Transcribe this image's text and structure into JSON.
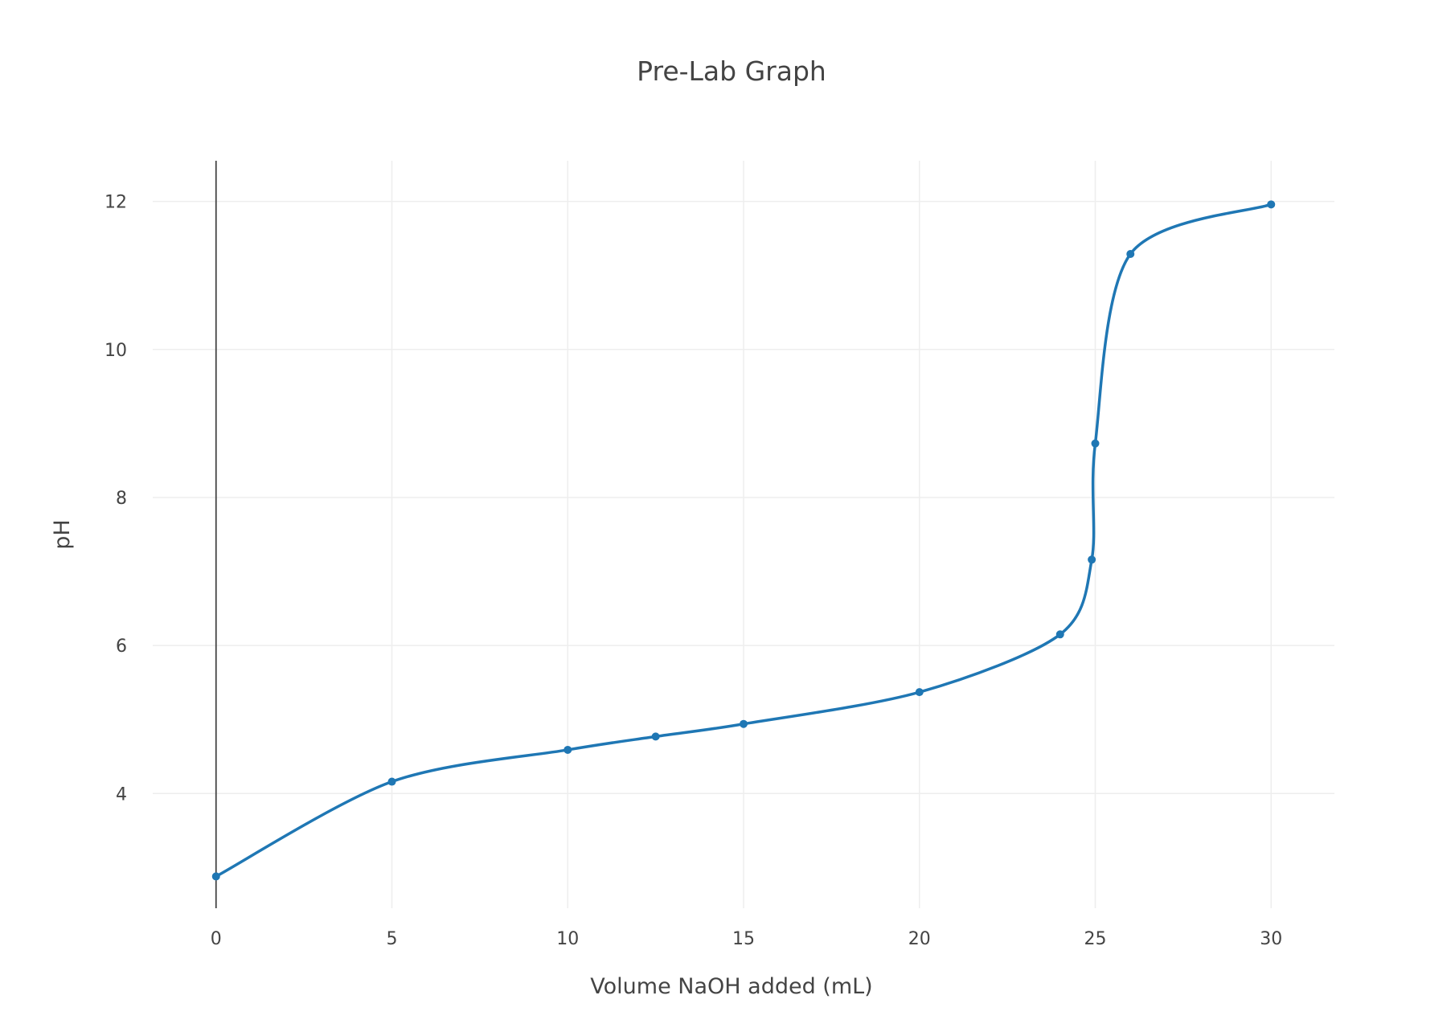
{
  "chart_data": {
    "type": "line",
    "title": "Pre-Lab Graph",
    "xlabel": "Volume NaOH added (mL)",
    "ylabel": "pH",
    "xlim": [
      -1.8,
      31.8
    ],
    "ylim": [
      2.45,
      12.55
    ],
    "x_ticks": [
      0,
      5,
      10,
      15,
      20,
      25,
      30
    ],
    "y_ticks": [
      4,
      6,
      8,
      10,
      12
    ],
    "grid": true,
    "legend": "none",
    "line_shape": "spline",
    "markers": true,
    "color": "#1f77b4",
    "series": [
      {
        "x": [
          0,
          5,
          10,
          12.5,
          15,
          20,
          24,
          24.9,
          25,
          26,
          30
        ],
        "y": [
          2.88,
          4.16,
          4.59,
          4.77,
          4.94,
          5.37,
          6.15,
          7.16,
          8.73,
          11.29,
          11.96
        ]
      }
    ]
  }
}
